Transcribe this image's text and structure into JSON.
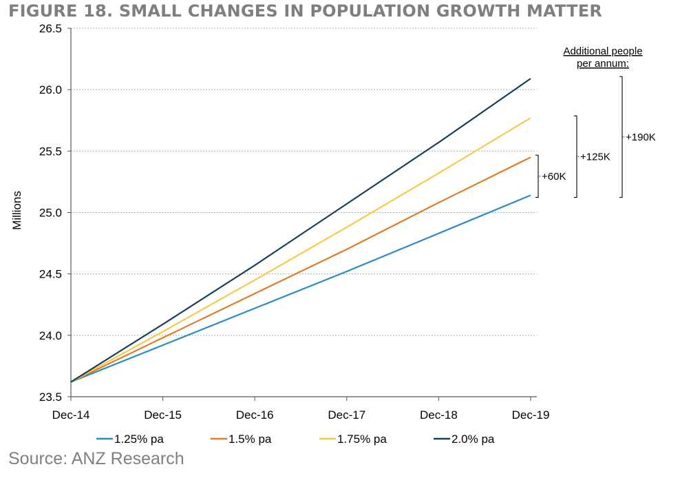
{
  "title": "FIGURE 18. SMALL CHANGES IN POPULATION GROWTH MATTER",
  "source": "Source: ANZ Research",
  "colors": {
    "title": "#7f7f7f",
    "grid": "#a6b1c2",
    "axis": "#555555"
  },
  "chart_data": {
    "type": "line",
    "xlabel": "",
    "ylabel": "Millions",
    "x": [
      "Dec-14",
      "Dec-15",
      "Dec-16",
      "Dec-17",
      "Dec-18",
      "Dec-19"
    ],
    "ylim": [
      23.5,
      26.5
    ],
    "yticks": [
      "23.5",
      "24.0",
      "24.5",
      "25.0",
      "25.5",
      "26.0",
      "26.5"
    ],
    "grid": true,
    "legend_position": "bottom",
    "series": [
      {
        "name": "1.25% pa",
        "color": "#2a8ac6",
        "values": [
          23.62,
          23.92,
          24.22,
          24.52,
          24.83,
          25.14
        ]
      },
      {
        "name": "1.5% pa",
        "color": "#e07b28",
        "values": [
          23.62,
          23.98,
          24.34,
          24.7,
          25.08,
          25.45
        ]
      },
      {
        "name": "1.75% pa",
        "color": "#f6c948",
        "values": [
          23.62,
          24.03,
          24.45,
          24.88,
          25.32,
          25.77
        ]
      },
      {
        "name": "2.0% pa",
        "color": "#163f5c",
        "values": [
          23.62,
          24.09,
          24.57,
          25.07,
          25.57,
          26.09
        ]
      }
    ],
    "annotations": {
      "header": [
        "Additional people",
        "per annum:"
      ],
      "brackets": [
        {
          "label": "+60K",
          "from": 25.14,
          "to": 25.45
        },
        {
          "label": "+125K",
          "from": 25.14,
          "to": 25.77
        },
        {
          "label": "+190K",
          "from": 25.14,
          "to": 26.09
        }
      ]
    }
  }
}
